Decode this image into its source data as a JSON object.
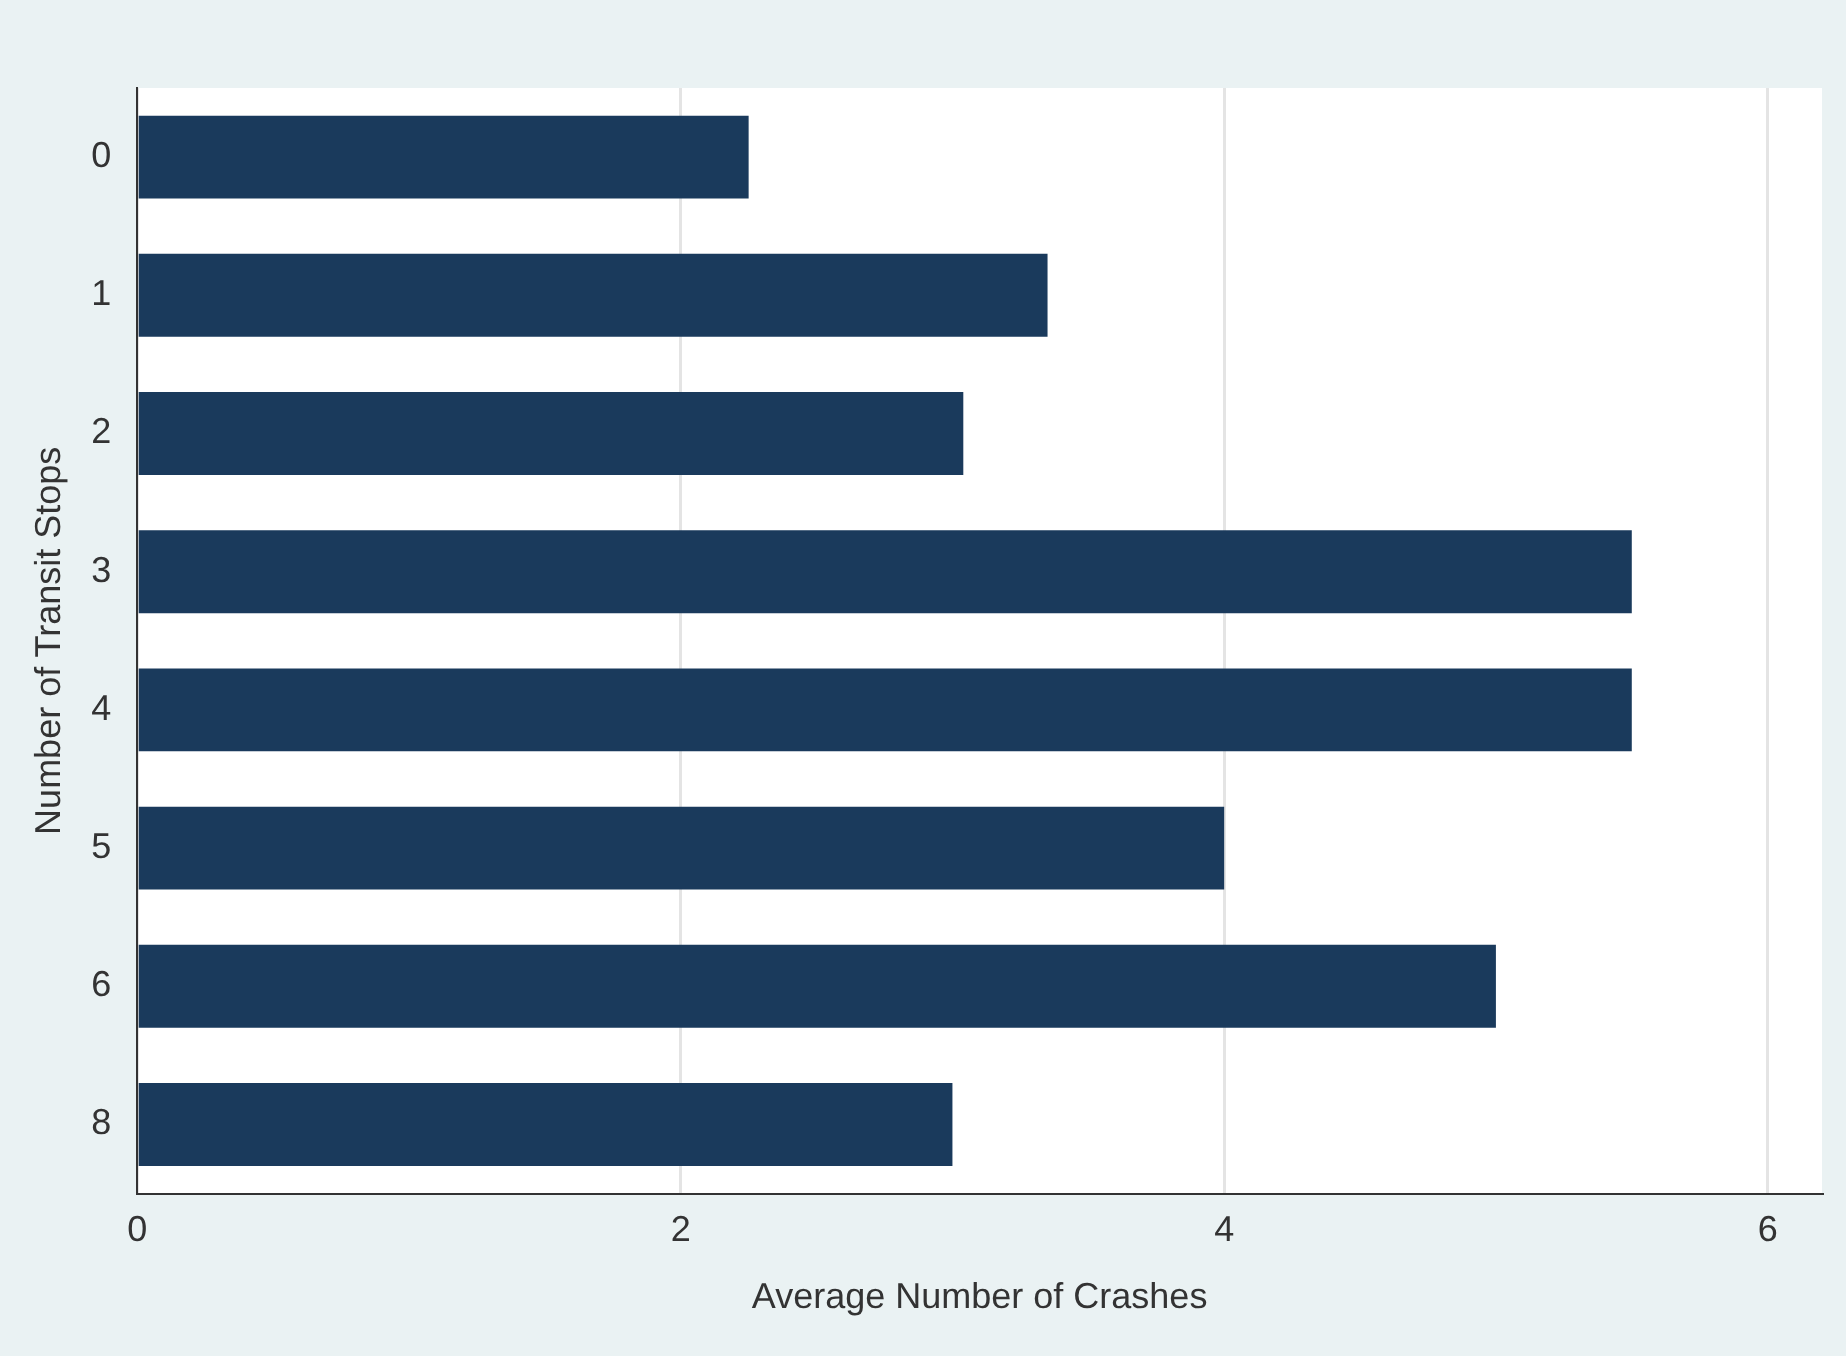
{
  "chart_data": {
    "type": "bar",
    "orientation": "horizontal",
    "xlabel": "Average Number of Crashes",
    "ylabel": "Number of Transit Stops",
    "categories": [
      "0",
      "1",
      "2",
      "3",
      "4",
      "5",
      "6",
      "8"
    ],
    "values": [
      2.25,
      3.35,
      3.04,
      5.5,
      5.5,
      4.0,
      5.0,
      3.0
    ],
    "color": "#1a3a5c",
    "xlim": [
      0,
      6.2
    ],
    "xticks": [
      0,
      2,
      4,
      6
    ],
    "grid": "x",
    "legend": false
  }
}
